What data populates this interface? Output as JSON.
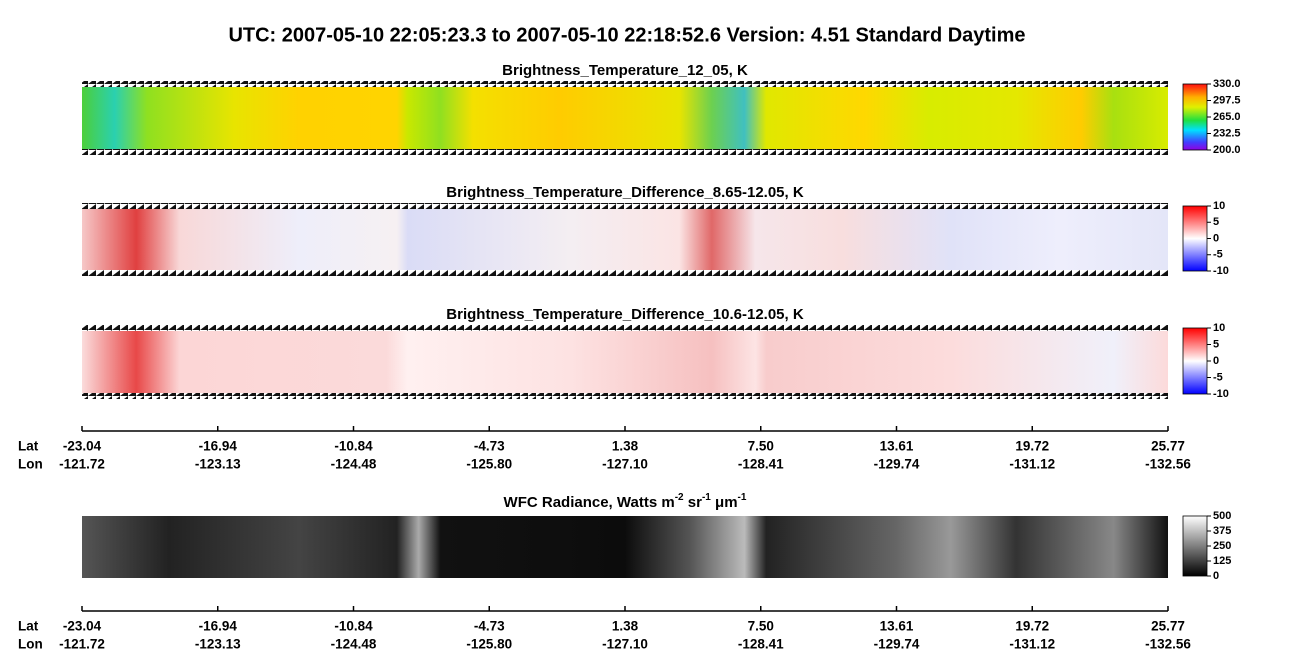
{
  "title": "UTC:  2007-05-10   22:05:23.3  to  2007-05-10   22:18:52.6    Version: 4.51  Standard Daytime",
  "panels": [
    {
      "title": [
        "Brightness_Temperature_12_05, K"
      ],
      "colorbar": {
        "lim": [
          200,
          330
        ],
        "ticks": [
          {
            "value": 200,
            "label": "200.0"
          },
          {
            "value": 232.5,
            "label": "232.5"
          },
          {
            "value": 265,
            "label": "265.0"
          },
          {
            "value": 297.5,
            "label": "297.5"
          },
          {
            "value": 330,
            "label": "330.0"
          }
        ]
      }
    },
    {
      "title": [
        "Brightness_Temperature_Difference_8.65-12.05, K"
      ],
      "colorbar": {
        "lim": [
          -10,
          10
        ],
        "ticks": [
          -10,
          -5,
          0,
          5,
          10
        ]
      }
    },
    {
      "title": [
        "Brightness_Temperature_Difference_10.6-12.05, K"
      ],
      "colorbar": {
        "lim": [
          -10,
          10
        ],
        "ticks": [
          -10,
          -5,
          0,
          5,
          10
        ]
      }
    },
    {
      "title": [
        "WFC Radiance, Watts m",
        "-2",
        " sr",
        "-1",
        " μm",
        "-1"
      ],
      "colorbar": {
        "lim": [
          0,
          500
        ],
        "ticks": [
          0,
          125,
          250,
          375,
          500
        ]
      }
    }
  ],
  "axes": [
    {
      "lat_label": "Lat",
      "lon_label": "Lon",
      "lat": [
        "-23.04",
        "-16.94",
        "-10.84",
        "-4.73",
        "1.38",
        "7.50",
        "13.61",
        "19.72",
        "25.77"
      ],
      "lon": [
        "-121.72",
        "-123.13",
        "-124.48",
        "-125.80",
        "-127.10",
        "-128.41",
        "-129.74",
        "-131.12",
        "-132.56"
      ]
    },
    {
      "lat_label": "Lat",
      "lon_label": "Lon",
      "lat": [
        "-23.04",
        "-16.94",
        "-10.84",
        "-4.73",
        "1.38",
        "7.50",
        "13.61",
        "19.72",
        "25.77"
      ],
      "lon": [
        "-121.72",
        "-123.13",
        "-124.48",
        "-125.80",
        "-127.10",
        "-128.41",
        "-129.74",
        "-131.12",
        "-132.56"
      ]
    }
  ]
}
